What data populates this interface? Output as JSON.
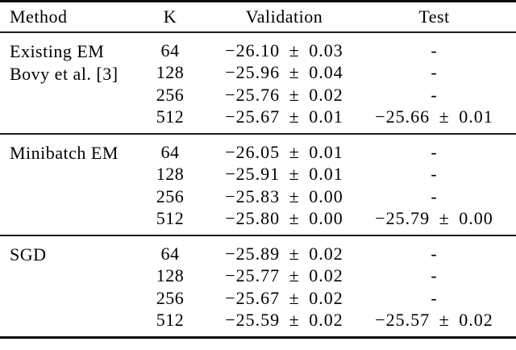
{
  "table": {
    "headers": {
      "method": "Method",
      "k": "K",
      "validation": "Validation",
      "test": "Test"
    },
    "sections": [
      {
        "method_lines": [
          "Existing EM",
          "Bovy et al. [3]"
        ],
        "rows": [
          {
            "k": "64",
            "validation": "−26.10 ± 0.03",
            "test": "-"
          },
          {
            "k": "128",
            "validation": "−25.96 ± 0.04",
            "test": "-"
          },
          {
            "k": "256",
            "validation": "−25.76 ± 0.02",
            "test": "-"
          },
          {
            "k": "512",
            "validation": "−25.67 ± 0.01",
            "test": "−25.66 ± 0.01"
          }
        ]
      },
      {
        "method_lines": [
          "Minibatch EM",
          ""
        ],
        "rows": [
          {
            "k": "64",
            "validation": "−26.05 ± 0.01",
            "test": "-"
          },
          {
            "k": "128",
            "validation": "−25.91 ± 0.01",
            "test": "-"
          },
          {
            "k": "256",
            "validation": "−25.83 ± 0.00",
            "test": "-"
          },
          {
            "k": "512",
            "validation": "−25.80 ± 0.00",
            "test": "−25.79 ± 0.00"
          }
        ]
      },
      {
        "method_lines": [
          "SGD",
          ""
        ],
        "rows": [
          {
            "k": "64",
            "validation": "−25.89 ± 0.02",
            "test": "-"
          },
          {
            "k": "128",
            "validation": "−25.77 ± 0.02",
            "test": "-"
          },
          {
            "k": "256",
            "validation": "−25.67 ± 0.02",
            "test": "-"
          },
          {
            "k": "512",
            "validation": "−25.59 ± 0.02",
            "test": "−25.57 ± 0.02"
          }
        ]
      }
    ]
  },
  "colors": {
    "text": "#000000",
    "rule_heavy": "#0a0a0a",
    "rule_light": "#1c1c1c",
    "background": "#ffffff"
  }
}
